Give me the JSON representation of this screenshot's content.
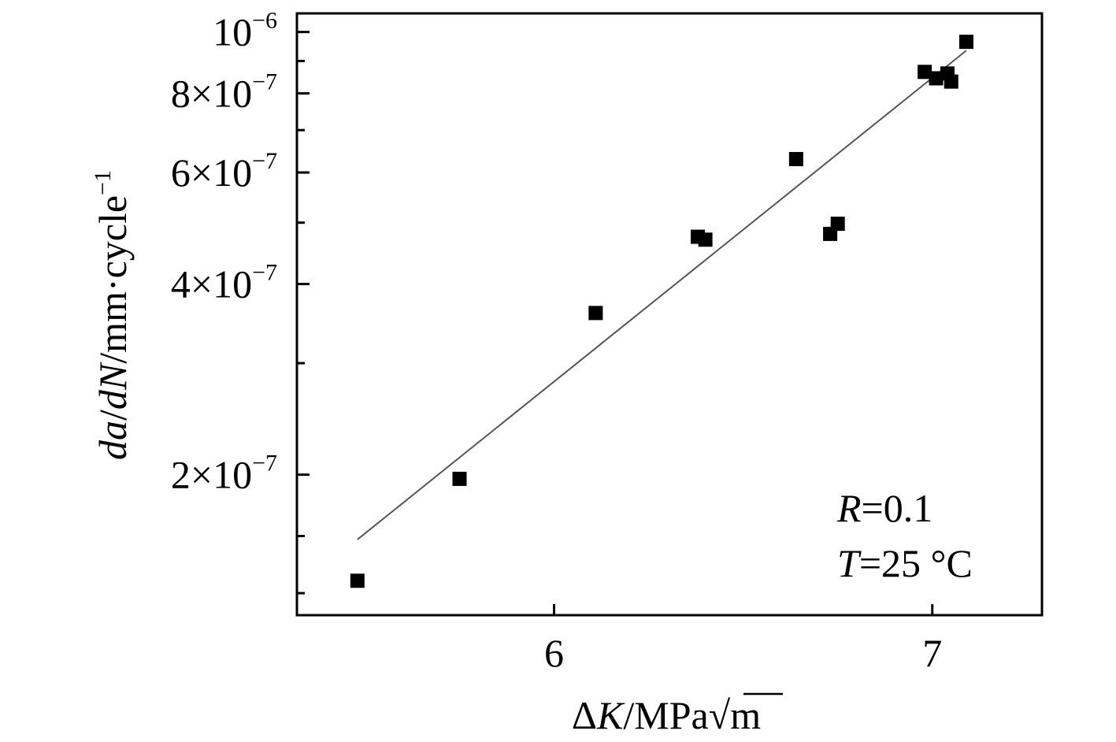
{
  "chart_data": {
    "type": "scatter",
    "title": "",
    "xlabel": {
      "delta": "Δ",
      "var": "K",
      "unit": "/MPa",
      "root": "√",
      "root_arg": "m"
    },
    "ylabel": {
      "d1": "d",
      "a": "a",
      "slash1": "/",
      "d2": "d",
      "N": "N",
      "unit": "/mm·cycle",
      "exp": "−1"
    },
    "xlim": [
      5.32,
      7.29
    ],
    "ylim": [
      1.2e-07,
      1.07e-06
    ],
    "yscale": "log",
    "x_ticks": [
      {
        "value": 6,
        "label": "6"
      },
      {
        "value": 7,
        "label": "7"
      }
    ],
    "y_ticks": [
      {
        "value": 2e-07,
        "mantissa": "2×10",
        "exp": "−7"
      },
      {
        "value": 4e-07,
        "mantissa": "4×10",
        "exp": "−7"
      },
      {
        "value": 6e-07,
        "mantissa": "6×10",
        "exp": "−7"
      },
      {
        "value": 8e-07,
        "mantissa": "8×10",
        "exp": "−7"
      },
      {
        "value": 1e-06,
        "mantissa": "10",
        "exp": "−6"
      }
    ],
    "y_minor_ticks": [
      1.3e-07,
      1.6e-07,
      3e-07,
      5e-07,
      7e-07,
      9e-07
    ],
    "x": [
      5.48,
      5.75,
      6.11,
      6.38,
      6.4,
      6.64,
      6.73,
      6.75,
      6.98,
      7.01,
      7.04,
      7.05,
      7.09
    ],
    "y": [
      1.36e-07,
      1.97e-07,
      3.6e-07,
      4.75e-07,
      4.7e-07,
      6.3e-07,
      4.8e-07,
      4.98e-07,
      8.65e-07,
      8.45e-07,
      8.6e-07,
      8.35e-07,
      9.65e-07
    ],
    "series": [
      {
        "name": "data",
        "kind": "marker",
        "marker": "square",
        "color": "#000000"
      },
      {
        "name": "fit",
        "kind": "line",
        "color": "#555555",
        "x": [
          5.48,
          7.09
        ],
        "y": [
          1.58e-07,
          9.35e-07
        ]
      }
    ],
    "annotations": [
      {
        "var": "R",
        "text": "=0.1"
      },
      {
        "var": "T",
        "text": "=25 °C"
      }
    ],
    "grid": false,
    "legend": "none"
  }
}
